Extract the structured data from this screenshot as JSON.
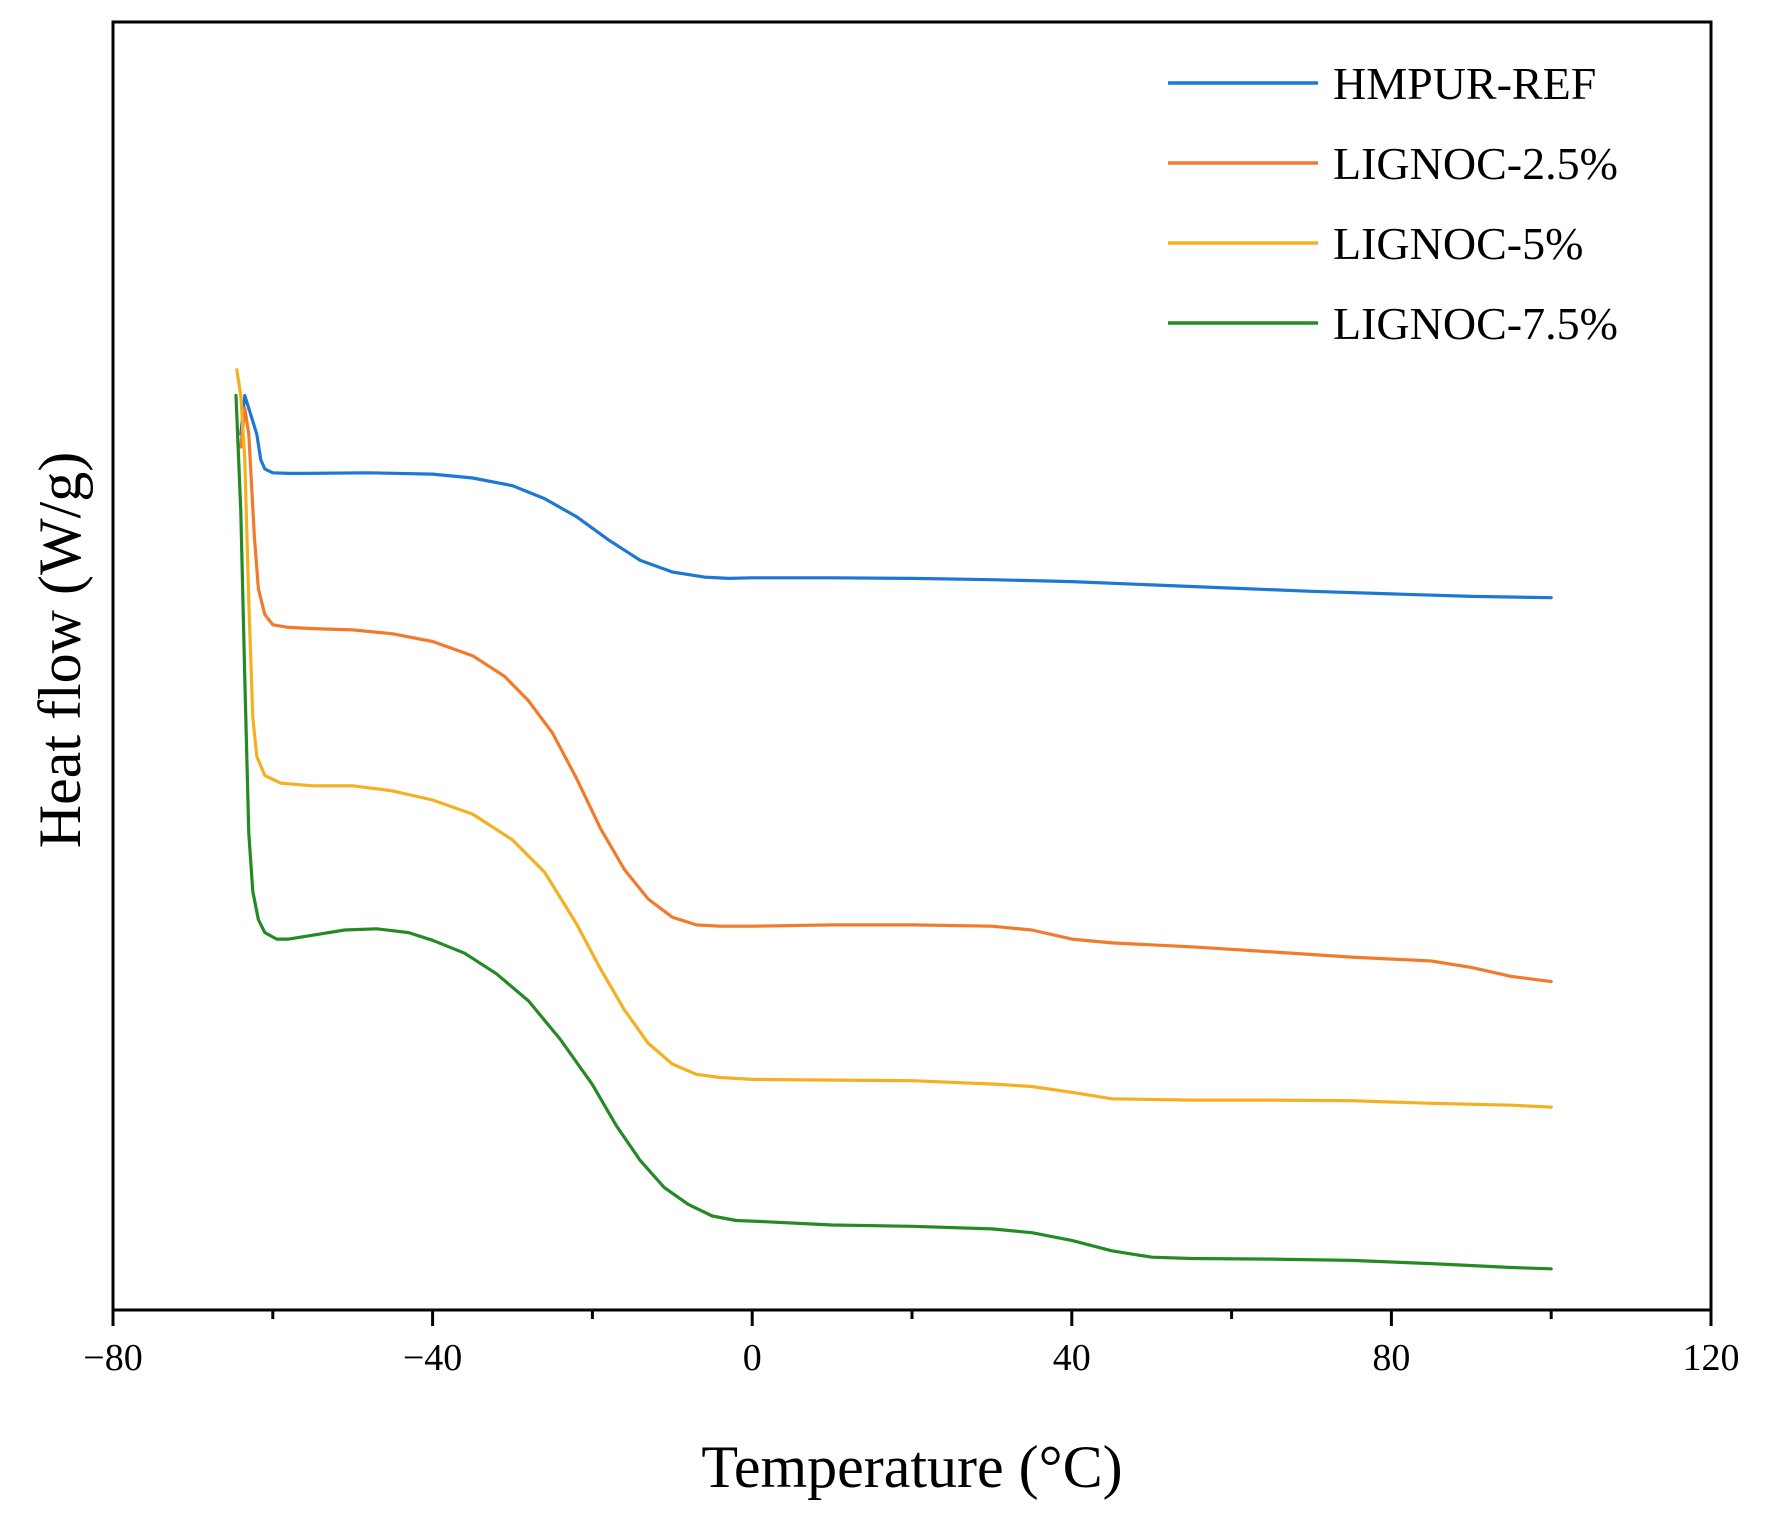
{
  "chart_data": {
    "type": "line",
    "title": "",
    "xlabel": "Temperature (°C)",
    "ylabel": "Heat flow (W/g)",
    "xlim": [
      -80,
      120
    ],
    "ylim": [
      0,
      100
    ],
    "x_ticks": [
      -80,
      -40,
      0,
      40,
      80,
      120
    ],
    "x_tick_labels": [
      "−80",
      "−40",
      "0",
      "40",
      "80",
      "120"
    ],
    "x_minor_ticks": [
      -60,
      -20,
      20,
      60,
      100
    ],
    "y_ticks_shown": false,
    "grid": false,
    "legend_position": "top-right",
    "series": [
      {
        "name": "HMPUR-REF",
        "color": "#1f77d4",
        "points": [
          [
            -64,
            68
          ],
          [
            -63.5,
            71
          ],
          [
            -63,
            70
          ],
          [
            -62,
            68
          ],
          [
            -61.5,
            66
          ],
          [
            -61,
            65.3
          ],
          [
            -60,
            65
          ],
          [
            -58,
            64.95
          ],
          [
            -56,
            64.95
          ],
          [
            -48,
            65
          ],
          [
            -40,
            64.9
          ],
          [
            -35,
            64.6
          ],
          [
            -30,
            64
          ],
          [
            -26,
            63
          ],
          [
            -22,
            61.6
          ],
          [
            -18,
            59.8
          ],
          [
            -14,
            58.2
          ],
          [
            -10,
            57.3
          ],
          [
            -6,
            56.9
          ],
          [
            -3,
            56.8
          ],
          [
            0,
            56.85
          ],
          [
            10,
            56.85
          ],
          [
            20,
            56.8
          ],
          [
            30,
            56.7
          ],
          [
            40,
            56.55
          ],
          [
            50,
            56.3
          ],
          [
            60,
            56.05
          ],
          [
            70,
            55.8
          ],
          [
            80,
            55.6
          ],
          [
            90,
            55.4
          ],
          [
            100,
            55.3
          ]
        ]
      },
      {
        "name": "LIGNOC-2.5%",
        "color": "#f27a2a",
        "points": [
          [
            -64,
            67
          ],
          [
            -63.5,
            70
          ],
          [
            -63,
            68
          ],
          [
            -62.3,
            60
          ],
          [
            -61.8,
            56
          ],
          [
            -61,
            54
          ],
          [
            -60,
            53.2
          ],
          [
            -58,
            53
          ],
          [
            -55,
            52.9
          ],
          [
            -50,
            52.8
          ],
          [
            -45,
            52.5
          ],
          [
            -40,
            51.9
          ],
          [
            -35,
            50.8
          ],
          [
            -31,
            49.2
          ],
          [
            -28,
            47.3
          ],
          [
            -25,
            44.8
          ],
          [
            -22,
            41.3
          ],
          [
            -19,
            37.4
          ],
          [
            -16,
            34.2
          ],
          [
            -13,
            31.9
          ],
          [
            -10,
            30.5
          ],
          [
            -7,
            29.9
          ],
          [
            -4,
            29.8
          ],
          [
            0,
            29.8
          ],
          [
            10,
            29.9
          ],
          [
            20,
            29.9
          ],
          [
            30,
            29.8
          ],
          [
            35,
            29.5
          ],
          [
            40,
            28.8
          ],
          [
            45,
            28.5
          ],
          [
            55,
            28.2
          ],
          [
            65,
            27.8
          ],
          [
            75,
            27.4
          ],
          [
            85,
            27.1
          ],
          [
            90,
            26.6
          ],
          [
            95,
            25.9
          ],
          [
            100,
            25.5
          ]
        ]
      },
      {
        "name": "LIGNOC-5%",
        "color": "#f5b021",
        "points": [
          [
            -64.5,
            73
          ],
          [
            -64,
            71
          ],
          [
            -63.5,
            66
          ],
          [
            -63,
            55
          ],
          [
            -62.5,
            46
          ],
          [
            -62,
            43
          ],
          [
            -61,
            41.5
          ],
          [
            -59,
            40.9
          ],
          [
            -55,
            40.7
          ],
          [
            -50,
            40.7
          ],
          [
            -45,
            40.3
          ],
          [
            -40,
            39.6
          ],
          [
            -35,
            38.5
          ],
          [
            -30,
            36.5
          ],
          [
            -26,
            34
          ],
          [
            -22,
            30
          ],
          [
            -19,
            26.5
          ],
          [
            -16,
            23.3
          ],
          [
            -13,
            20.7
          ],
          [
            -10,
            19.1
          ],
          [
            -7,
            18.3
          ],
          [
            -4,
            18.05
          ],
          [
            0,
            17.9
          ],
          [
            10,
            17.85
          ],
          [
            20,
            17.8
          ],
          [
            30,
            17.55
          ],
          [
            35,
            17.35
          ],
          [
            40,
            16.9
          ],
          [
            45,
            16.4
          ],
          [
            55,
            16.3
          ],
          [
            65,
            16.3
          ],
          [
            75,
            16.25
          ],
          [
            85,
            16.05
          ],
          [
            95,
            15.9
          ],
          [
            100,
            15.75
          ]
        ]
      },
      {
        "name": "LIGNOC-7.5%",
        "color": "#258a25",
        "points": [
          [
            -64.6,
            71
          ],
          [
            -64,
            62
          ],
          [
            -63.5,
            49
          ],
          [
            -63,
            37
          ],
          [
            -62.5,
            32.5
          ],
          [
            -61.8,
            30.3
          ],
          [
            -61,
            29.3
          ],
          [
            -59.5,
            28.8
          ],
          [
            -58,
            28.8
          ],
          [
            -55,
            29.1
          ],
          [
            -51,
            29.5
          ],
          [
            -47,
            29.6
          ],
          [
            -43,
            29.3
          ],
          [
            -40,
            28.7
          ],
          [
            -36,
            27.7
          ],
          [
            -32,
            26.1
          ],
          [
            -28,
            24
          ],
          [
            -24,
            21
          ],
          [
            -20,
            17.5
          ],
          [
            -17,
            14.3
          ],
          [
            -14,
            11.6
          ],
          [
            -11,
            9.5
          ],
          [
            -8,
            8.2
          ],
          [
            -5,
            7.3
          ],
          [
            -2,
            6.95
          ],
          [
            0,
            6.9
          ],
          [
            10,
            6.6
          ],
          [
            20,
            6.5
          ],
          [
            30,
            6.3
          ],
          [
            35,
            6.0
          ],
          [
            40,
            5.4
          ],
          [
            45,
            4.6
          ],
          [
            50,
            4.1
          ],
          [
            55,
            4.0
          ],
          [
            65,
            3.95
          ],
          [
            75,
            3.85
          ],
          [
            85,
            3.6
          ],
          [
            95,
            3.3
          ],
          [
            100,
            3.2
          ]
        ]
      }
    ]
  }
}
